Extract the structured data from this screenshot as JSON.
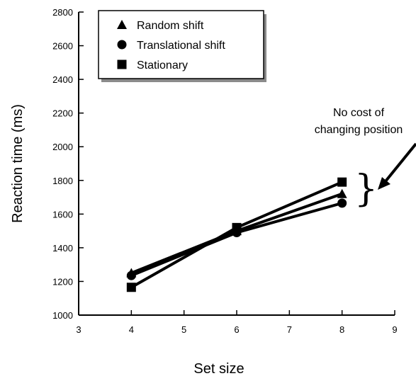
{
  "chart_data": {
    "type": "line",
    "title": "",
    "xlabel": "Set size",
    "ylabel": "Reaction time (ms)",
    "xlim": [
      3,
      9
    ],
    "ylim": [
      1000,
      2800
    ],
    "xticks": [
      3,
      4,
      5,
      6,
      7,
      8,
      9
    ],
    "yticks": [
      1000,
      1200,
      1400,
      1600,
      1800,
      2000,
      2200,
      2400,
      2600,
      2800
    ],
    "grid": false,
    "legend_position": "top-left",
    "x": [
      4,
      6,
      8
    ],
    "series": [
      {
        "name": "Random shift",
        "marker": "triangle",
        "values": [
          1250,
          1500,
          1720
        ]
      },
      {
        "name": "Translational shift",
        "marker": "circle",
        "values": [
          1235,
          1490,
          1665
        ]
      },
      {
        "name": "Stationary",
        "marker": "square",
        "values": [
          1165,
          1520,
          1790
        ]
      }
    ],
    "annotation": {
      "lines": [
        "No cost of",
        "changing position"
      ],
      "bracket": "}"
    }
  }
}
